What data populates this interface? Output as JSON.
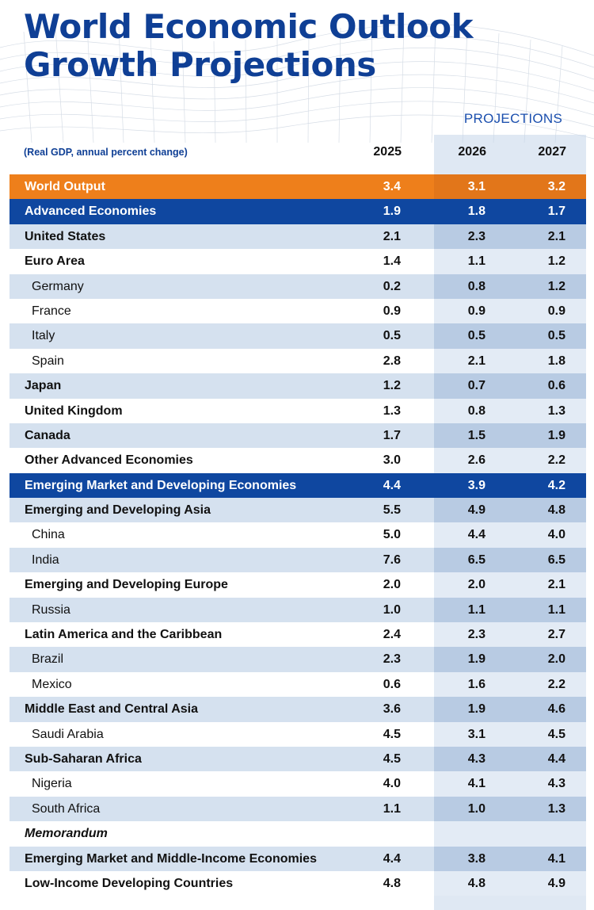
{
  "title_line1": "World Economic Outlook",
  "title_line2": "Growth Projections",
  "projections_label": "PROJECTIONS",
  "subtitle": "(Real GDP, annual percent change)",
  "years": [
    "2025",
    "2026",
    "2027"
  ],
  "chart_data": {
    "type": "table",
    "columns": [
      "2025",
      "2026",
      "2027"
    ],
    "projection_columns": [
      "2026",
      "2027"
    ],
    "rows": [
      {
        "label": "World Output",
        "values": [
          "3.4",
          "3.1",
          "3.2"
        ],
        "style": "orange"
      },
      {
        "label": "Advanced Economies",
        "values": [
          "1.9",
          "1.8",
          "1.7"
        ],
        "style": "navy"
      },
      {
        "label": "United States",
        "values": [
          "2.1",
          "2.3",
          "2.1"
        ],
        "style": "alt"
      },
      {
        "label": "Euro Area",
        "values": [
          "1.4",
          "1.1",
          "1.2"
        ],
        "style": "white"
      },
      {
        "label": "Germany",
        "values": [
          "0.2",
          "0.8",
          "1.2"
        ],
        "style": "alt",
        "indent": true
      },
      {
        "label": "France",
        "values": [
          "0.9",
          "0.9",
          "0.9"
        ],
        "style": "white",
        "indent": true
      },
      {
        "label": "Italy",
        "values": [
          "0.5",
          "0.5",
          "0.5"
        ],
        "style": "alt",
        "indent": true
      },
      {
        "label": "Spain",
        "values": [
          "2.8",
          "2.1",
          "1.8"
        ],
        "style": "white",
        "indent": true
      },
      {
        "label": "Japan",
        "values": [
          "1.2",
          "0.7",
          "0.6"
        ],
        "style": "alt"
      },
      {
        "label": "United Kingdom",
        "values": [
          "1.3",
          "0.8",
          "1.3"
        ],
        "style": "white"
      },
      {
        "label": "Canada",
        "values": [
          "1.7",
          "1.5",
          "1.9"
        ],
        "style": "alt"
      },
      {
        "label": "Other Advanced Economies",
        "values": [
          "3.0",
          "2.6",
          "2.2"
        ],
        "style": "white"
      },
      {
        "label": "Emerging Market and Developing Economies",
        "values": [
          "4.4",
          "3.9",
          "4.2"
        ],
        "style": "navy"
      },
      {
        "label": "Emerging and Developing Asia",
        "values": [
          "5.5",
          "4.9",
          "4.8"
        ],
        "style": "alt"
      },
      {
        "label": "China",
        "values": [
          "5.0",
          "4.4",
          "4.0"
        ],
        "style": "white",
        "indent": true
      },
      {
        "label": "India",
        "values": [
          "7.6",
          "6.5",
          "6.5"
        ],
        "style": "alt",
        "indent": true
      },
      {
        "label": "Emerging and Developing Europe",
        "values": [
          "2.0",
          "2.0",
          "2.1"
        ],
        "style": "white"
      },
      {
        "label": "Russia",
        "values": [
          "1.0",
          "1.1",
          "1.1"
        ],
        "style": "alt",
        "indent": true
      },
      {
        "label": "Latin America and the Caribbean",
        "values": [
          "2.4",
          "2.3",
          "2.7"
        ],
        "style": "white"
      },
      {
        "label": "Brazil",
        "values": [
          "2.3",
          "1.9",
          "2.0"
        ],
        "style": "alt",
        "indent": true
      },
      {
        "label": "Mexico",
        "values": [
          "0.6",
          "1.6",
          "2.2"
        ],
        "style": "white",
        "indent": true
      },
      {
        "label": "Middle East and Central Asia",
        "values": [
          "3.6",
          "1.9",
          "4.6"
        ],
        "style": "alt"
      },
      {
        "label": "Saudi Arabia",
        "values": [
          "4.5",
          "3.1",
          "4.5"
        ],
        "style": "white",
        "indent": true
      },
      {
        "label": "Sub-Saharan Africa",
        "values": [
          "4.5",
          "4.3",
          "4.4"
        ],
        "style": "alt"
      },
      {
        "label": "Nigeria",
        "values": [
          "4.0",
          "4.1",
          "4.3"
        ],
        "style": "white",
        "indent": true
      },
      {
        "label": "South Africa",
        "values": [
          "1.1",
          "1.0",
          "1.3"
        ],
        "style": "alt",
        "indent": true
      },
      {
        "label": "Memorandum",
        "values": [
          "",
          "",
          ""
        ],
        "style": "memo"
      },
      {
        "label": "Emerging Market and Middle-Income Economies",
        "values": [
          "4.4",
          "3.8",
          "4.1"
        ],
        "style": "alt"
      },
      {
        "label": "Low-Income Developing Countries",
        "values": [
          "4.8",
          "4.8",
          "4.9"
        ],
        "style": "white"
      }
    ]
  },
  "colors": {
    "title": "#0f3f95",
    "orange_row": "#ee7f1b",
    "navy_row": "#0f47a0",
    "alt_row": "#d5e1ef"
  }
}
